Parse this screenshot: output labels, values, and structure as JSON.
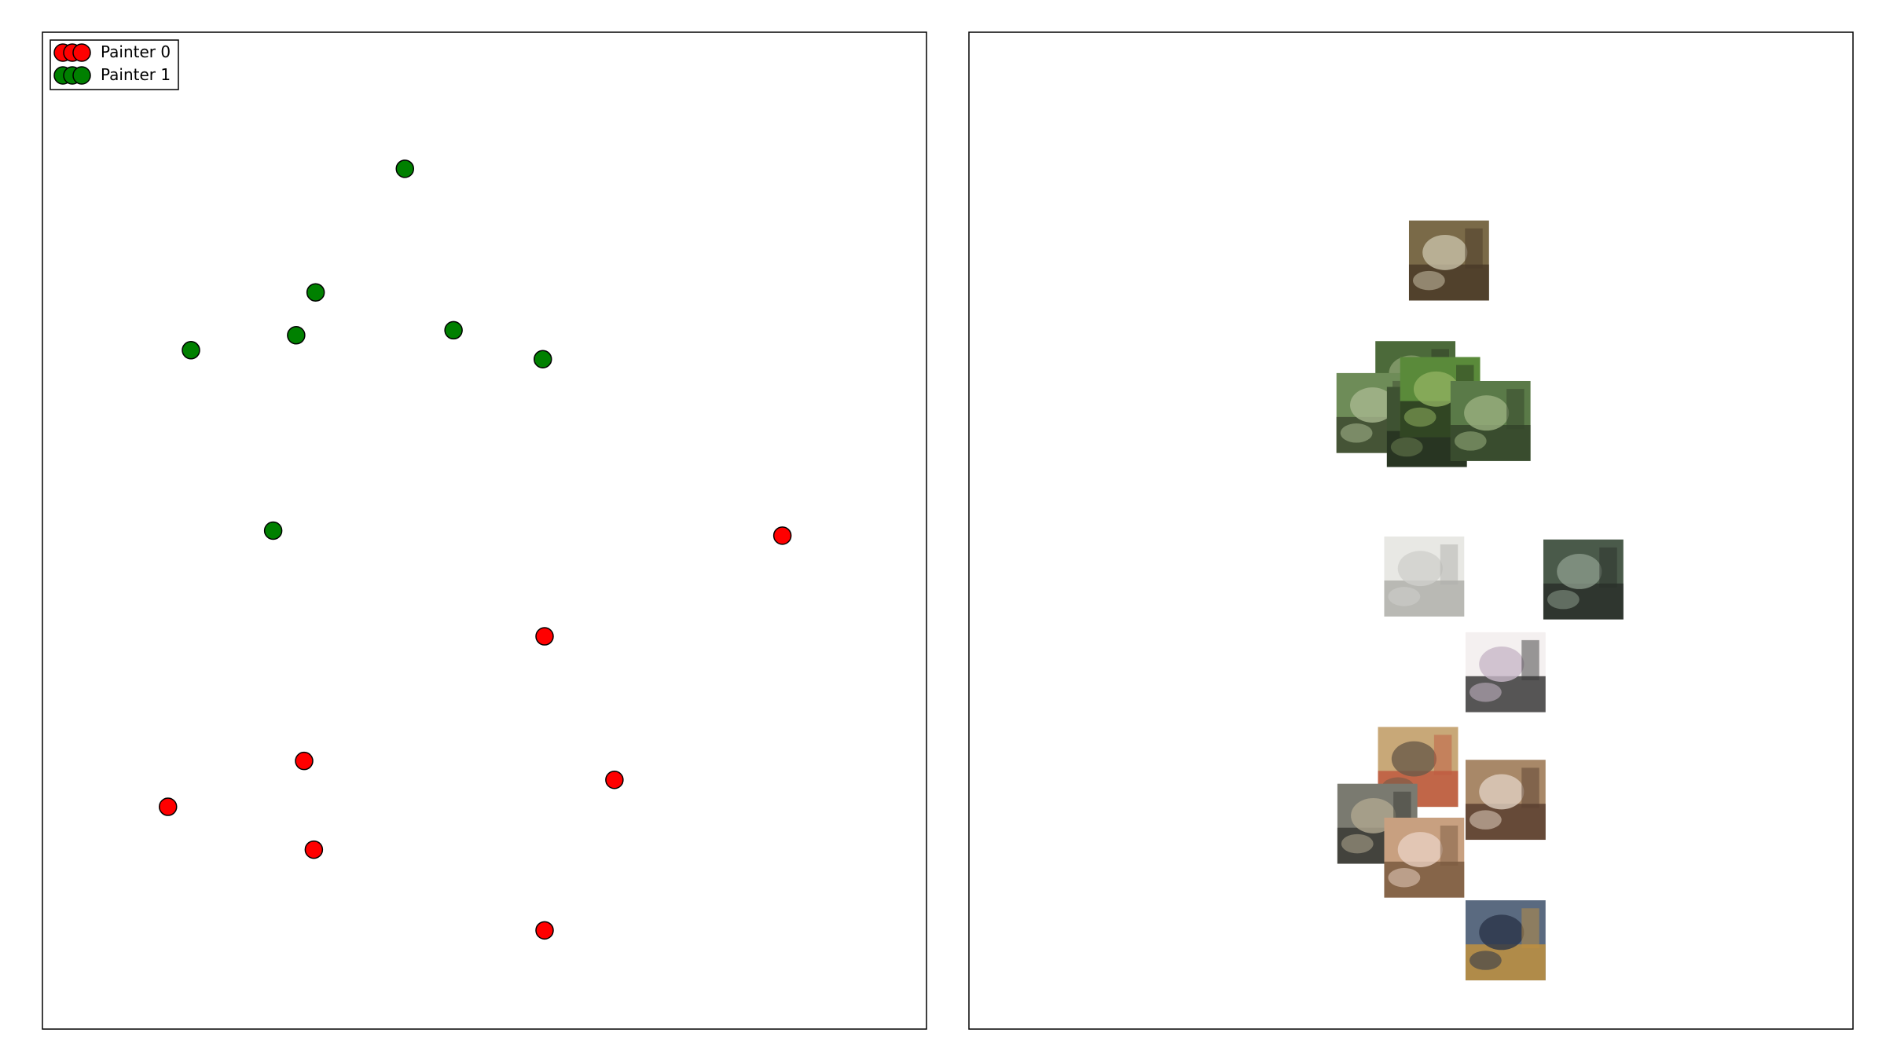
{
  "chart_data": [
    {
      "type": "scatter",
      "title": "",
      "xlabel": "",
      "ylabel": "",
      "axes_visible": false,
      "xlim": [
        0,
        100
      ],
      "ylim": [
        0,
        100
      ],
      "legend": {
        "placement": "top-left",
        "entries": [
          "Painter 0",
          "Painter 1"
        ]
      },
      "series": [
        {
          "name": "Painter 0",
          "color": "#ff0000",
          "points": [
            {
              "x": 83.7,
              "y": 49.5
            },
            {
              "x": 56.8,
              "y": 39.4
            },
            {
              "x": 29.6,
              "y": 26.9
            },
            {
              "x": 64.7,
              "y": 25.0
            },
            {
              "x": 14.2,
              "y": 22.3
            },
            {
              "x": 30.7,
              "y": 18.0
            },
            {
              "x": 56.8,
              "y": 9.9
            }
          ]
        },
        {
          "name": "Painter 1",
          "color": "#008000",
          "points": [
            {
              "x": 41.0,
              "y": 86.3
            },
            {
              "x": 30.9,
              "y": 73.9
            },
            {
              "x": 28.7,
              "y": 69.6
            },
            {
              "x": 16.8,
              "y": 68.1
            },
            {
              "x": 46.5,
              "y": 70.1
            },
            {
              "x": 56.6,
              "y": 67.2
            },
            {
              "x": 26.1,
              "y": 50.0
            }
          ]
        }
      ]
    },
    {
      "type": "scatter",
      "title": "",
      "xlabel": "",
      "ylabel": "",
      "axes_visible": false,
      "marker": "painting-thumbnail",
      "xlim": [
        0,
        100
      ],
      "ylim": [
        0,
        100
      ],
      "points": [
        {
          "x": 54.3,
          "y": 77.1,
          "subject": "portrait",
          "colors": [
            "#7a6a48",
            "#4a3a28",
            "#c8c0a8"
          ]
        },
        {
          "x": 50.5,
          "y": 65.0,
          "subject": "landscape",
          "colors": [
            "#4c6a3a",
            "#2e3a24",
            "#8aa070"
          ]
        },
        {
          "x": 46.1,
          "y": 61.8,
          "subject": "landscape",
          "colors": [
            "#6e8c58",
            "#3e4a30",
            "#a8b890"
          ]
        },
        {
          "x": 51.8,
          "y": 60.4,
          "subject": "landscape",
          "colors": [
            "#3e5232",
            "#253020",
            "#6a7e50"
          ]
        },
        {
          "x": 53.3,
          "y": 63.4,
          "subject": "landscape",
          "colors": [
            "#5a8a3a",
            "#2a3a20",
            "#90b060"
          ]
        },
        {
          "x": 59.0,
          "y": 61.0,
          "subject": "landscape",
          "colors": [
            "#5a7a48",
            "#34442a",
            "#9ab080"
          ]
        },
        {
          "x": 51.5,
          "y": 45.4,
          "subject": "sketch",
          "colors": [
            "#e8e8e4",
            "#b0b0ac",
            "#d0d0cc"
          ]
        },
        {
          "x": 69.5,
          "y": 45.1,
          "subject": "cubist",
          "colors": [
            "#4a5a4a",
            "#2a302a",
            "#8a9a8a"
          ]
        },
        {
          "x": 60.7,
          "y": 35.8,
          "subject": "drawing",
          "colors": [
            "#f4f0f0",
            "#3a3a3a",
            "#c8b8c8"
          ]
        },
        {
          "x": 50.8,
          "y": 26.3,
          "subject": "figure",
          "colors": [
            "#c8a878",
            "#c05a40",
            "#6a5a48"
          ]
        },
        {
          "x": 60.7,
          "y": 23.0,
          "subject": "interior",
          "colors": [
            "#a88868",
            "#5a4030",
            "#e0d0c0"
          ]
        },
        {
          "x": 46.2,
          "y": 20.6,
          "subject": "figures",
          "colors": [
            "#7a7a70",
            "#3a3a34",
            "#b0a890"
          ]
        },
        {
          "x": 51.5,
          "y": 17.2,
          "subject": "nude",
          "colors": [
            "#c8a080",
            "#7a5a40",
            "#e8d0c0"
          ]
        },
        {
          "x": 60.7,
          "y": 8.9,
          "subject": "surreal",
          "colors": [
            "#5a6a80",
            "#c09040",
            "#2a3448"
          ]
        }
      ]
    }
  ]
}
